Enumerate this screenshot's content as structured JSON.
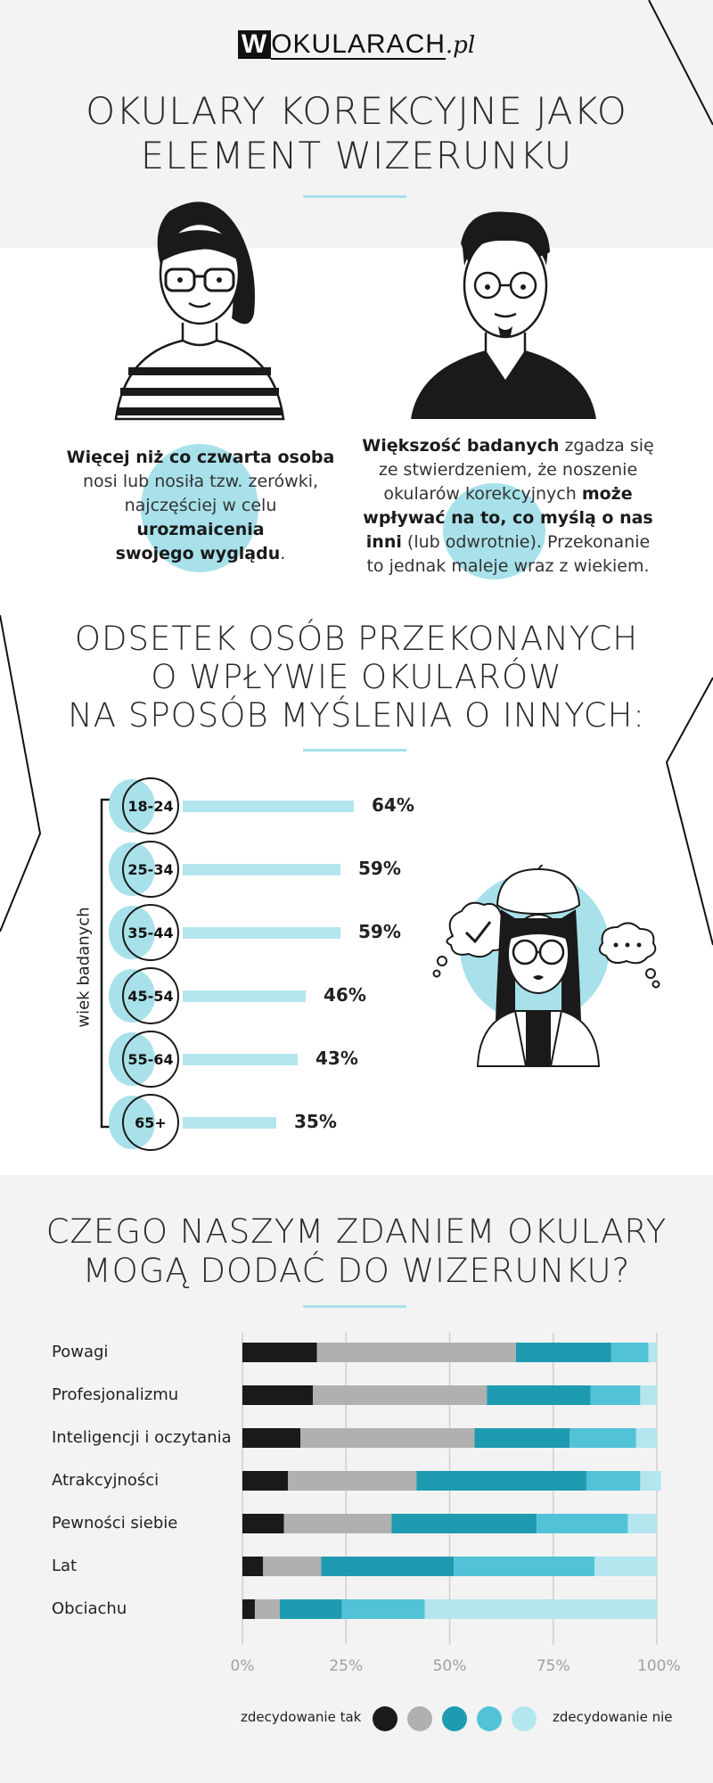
{
  "logo": {
    "w": "W",
    "rest": "OKULARACH",
    "pl": ".pl"
  },
  "header": {
    "title_line1": "OKULARY KOREKCYJNE JAKO",
    "title_line2": "ELEMENT WIZERUNKU"
  },
  "facts": {
    "left": {
      "b1": "Więcej niż co czwarta osoba",
      "t1": "nosi lub nosiła tzw. zerówki,",
      "t2": "najczęściej w celu",
      "b2": "urozmaicenia",
      "b3": "swojego wyglądu",
      "t3": "."
    },
    "right": {
      "b1": "Większość badanych",
      "t1": " zgadza się",
      "t2": "ze stwierdzeniem, że noszenie",
      "t3": "okularów korekcyjnych ",
      "b2": "może",
      "b3": "wpływać na to, co myślą o nas",
      "b4": "inni",
      "t4": " (lub odwrotnie). Przekonanie",
      "t5": "to jednak maleje wraz z wiekiem."
    }
  },
  "section2": {
    "line1": "ODSETEK OSÓB PRZEKONANYCH",
    "line2": "O WPŁYWIE OKULARÓW",
    "line3": "NA SPOSÓB MYŚLENIA O INNYCH:",
    "axis_label": "wiek badanych"
  },
  "section3": {
    "line1": "CZEGO NASZYM ZDANIEM OKULARY",
    "line2": "MOGĄ DODAĆ DO WIZERUNKU?"
  },
  "legend": {
    "left": "zdecydowanie tak",
    "right": "zdecydowanie nie"
  },
  "colors": {
    "accent": "#a8e1ea",
    "dark": "#1a1a1a",
    "gray": "#b0b0b0",
    "teal": "#1e9bb0",
    "mid": "#52c3d6",
    "light": "#b3e6ee"
  },
  "chart_data": [
    {
      "type": "bar",
      "categories": [
        "18-24",
        "25-34",
        "35-44",
        "45-54",
        "55-64",
        "65+"
      ],
      "values": [
        64,
        59,
        59,
        46,
        43,
        35
      ],
      "value_labels": [
        "64%",
        "59%",
        "59%",
        "46%",
        "43%",
        "35%"
      ],
      "xlabel": "",
      "ylabel": "wiek badanych",
      "ylim": [
        0,
        100
      ]
    },
    {
      "type": "bar",
      "stacked": true,
      "orientation": "horizontal",
      "categories": [
        "Powagi",
        "Profesjonalizmu",
        "Inteligencji i oczytania",
        "Atrakcyjności",
        "Pewności siebie",
        "Lat",
        "Obciachu"
      ],
      "series": [
        {
          "name": "zdecydowanie tak",
          "color": "#1a1a1a",
          "values": [
            18,
            17,
            14,
            11,
            10,
            5,
            3
          ]
        },
        {
          "name": "",
          "color": "#b0b0b0",
          "values": [
            48,
            42,
            42,
            31,
            26,
            14,
            6
          ]
        },
        {
          "name": "",
          "color": "#1e9bb0",
          "values": [
            23,
            25,
            23,
            41,
            35,
            32,
            15
          ]
        },
        {
          "name": "",
          "color": "#52c3d6",
          "values": [
            9,
            12,
            16,
            13,
            22,
            34,
            20
          ]
        },
        {
          "name": "zdecydowanie nie",
          "color": "#b3e6ee",
          "values": [
            2,
            4,
            5,
            5,
            7,
            15,
            56
          ]
        }
      ],
      "xticks": [
        "0%",
        "25%",
        "50%",
        "75%",
        "100%"
      ],
      "xlim": [
        0,
        100
      ],
      "grid": true,
      "legend": "bottom"
    }
  ]
}
